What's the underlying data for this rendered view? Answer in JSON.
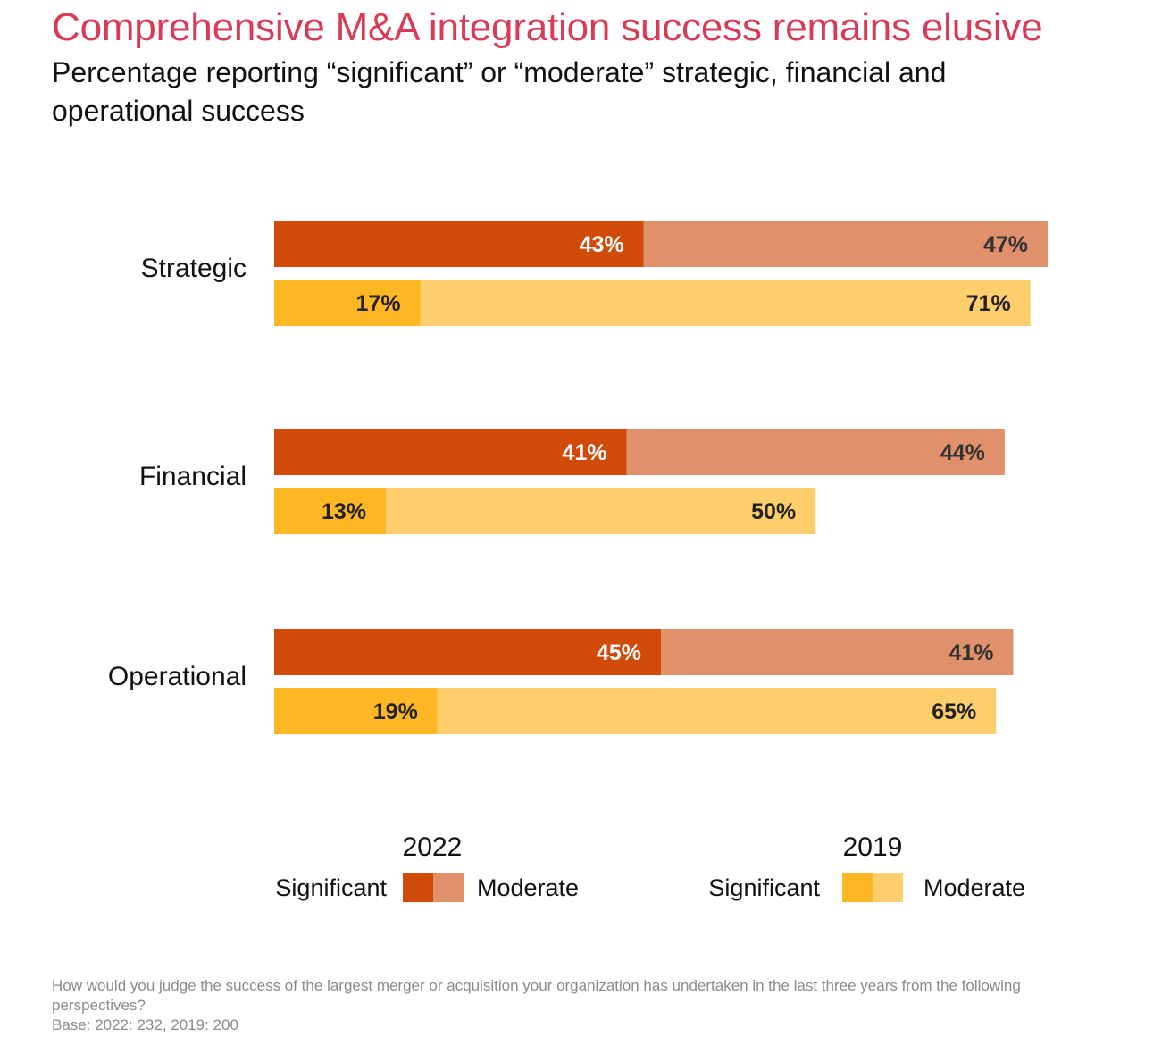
{
  "title": "Comprehensive M&A integration success remains elusive",
  "subtitle": "Percentage reporting “significant” or “moderate” strategic, financial and operational success",
  "footnote": {
    "question": "How would you judge the success of the largest merger or acquisition your organization has undertaken in the last three years from the following perspectives?",
    "base": "Base: 2022: 232, 2019: 200"
  },
  "chart_data": {
    "type": "bar",
    "orientation": "horizontal",
    "stacked": true,
    "categories": [
      "Strategic",
      "Financial",
      "Operational"
    ],
    "groups": [
      {
        "name": "2022",
        "series": [
          {
            "name": "Significant",
            "values": [
              43,
              41,
              45
            ],
            "color": "#D04A0A",
            "label_color": "#ffffff"
          },
          {
            "name": "Moderate",
            "values": [
              47,
              44,
              41
            ],
            "color": "#E0906A",
            "label_color": "#333333"
          }
        ]
      },
      {
        "name": "2019",
        "series": [
          {
            "name": "Significant",
            "values": [
              17,
              13,
              19
            ],
            "color": "#FDB624",
            "label_color": "#222222"
          },
          {
            "name": "Moderate",
            "values": [
              71,
              50,
              65
            ],
            "color": "#FFCE6C",
            "label_color": "#222222"
          }
        ]
      }
    ],
    "unit": "%",
    "xlim": [
      0,
      90
    ],
    "grid": false,
    "legend_placement": "bottom"
  }
}
